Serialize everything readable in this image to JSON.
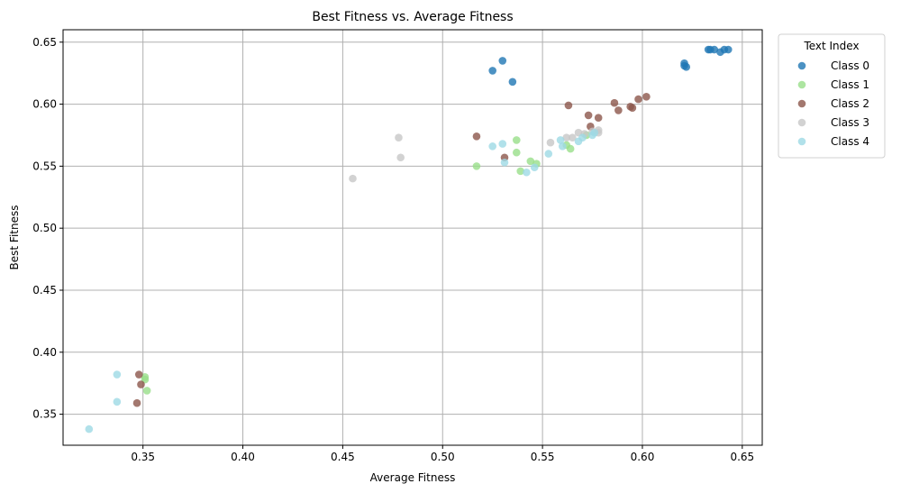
{
  "chart_data": {
    "type": "scatter",
    "title": "Best Fitness vs. Average Fitness",
    "xlabel": "Average Fitness",
    "ylabel": "Best Fitness",
    "xlim": [
      0.31,
      0.66
    ],
    "ylim": [
      0.325,
      0.66
    ],
    "xticks": [
      "0.35",
      "0.40",
      "0.45",
      "0.50",
      "0.55",
      "0.60",
      "0.65"
    ],
    "yticks": [
      "0.35",
      "0.40",
      "0.45",
      "0.50",
      "0.55",
      "0.60",
      "0.65"
    ],
    "grid": true,
    "legend": {
      "title": "Text Index",
      "placement": "outside-top-right"
    },
    "series": [
      {
        "name": "Class 0",
        "color": "#1f77b4",
        "points": [
          [
            0.53,
            0.635
          ],
          [
            0.525,
            0.627
          ],
          [
            0.535,
            0.618
          ],
          [
            0.621,
            0.633
          ],
          [
            0.621,
            0.631
          ],
          [
            0.622,
            0.63
          ],
          [
            0.633,
            0.644
          ],
          [
            0.634,
            0.644
          ],
          [
            0.636,
            0.644
          ],
          [
            0.639,
            0.642
          ],
          [
            0.641,
            0.644
          ],
          [
            0.643,
            0.644
          ]
        ]
      },
      {
        "name": "Class 1",
        "color": "#98df8a",
        "points": [
          [
            0.351,
            0.38
          ],
          [
            0.351,
            0.378
          ],
          [
            0.352,
            0.369
          ],
          [
            0.517,
            0.55
          ],
          [
            0.537,
            0.571
          ],
          [
            0.537,
            0.561
          ],
          [
            0.539,
            0.546
          ],
          [
            0.544,
            0.554
          ],
          [
            0.547,
            0.552
          ],
          [
            0.562,
            0.567
          ],
          [
            0.564,
            0.564
          ],
          [
            0.572,
            0.575
          ]
        ]
      },
      {
        "name": "Class 2",
        "color": "#8c564b",
        "points": [
          [
            0.348,
            0.382
          ],
          [
            0.349,
            0.374
          ],
          [
            0.347,
            0.359
          ],
          [
            0.517,
            0.574
          ],
          [
            0.531,
            0.557
          ],
          [
            0.563,
            0.599
          ],
          [
            0.573,
            0.591
          ],
          [
            0.574,
            0.582
          ],
          [
            0.578,
            0.589
          ],
          [
            0.586,
            0.601
          ],
          [
            0.588,
            0.595
          ],
          [
            0.594,
            0.598
          ],
          [
            0.595,
            0.597
          ],
          [
            0.598,
            0.604
          ],
          [
            0.602,
            0.606
          ]
        ]
      },
      {
        "name": "Class 3",
        "color": "#c7c7c7",
        "points": [
          [
            0.455,
            0.54
          ],
          [
            0.478,
            0.573
          ],
          [
            0.479,
            0.557
          ],
          [
            0.554,
            0.569
          ],
          [
            0.562,
            0.573
          ],
          [
            0.565,
            0.573
          ],
          [
            0.568,
            0.577
          ],
          [
            0.571,
            0.576
          ],
          [
            0.575,
            0.578
          ],
          [
            0.578,
            0.579
          ],
          [
            0.578,
            0.577
          ]
        ]
      },
      {
        "name": "Class 4",
        "color": "#9edae5",
        "points": [
          [
            0.323,
            0.338
          ],
          [
            0.337,
            0.382
          ],
          [
            0.337,
            0.36
          ],
          [
            0.525,
            0.566
          ],
          [
            0.53,
            0.568
          ],
          [
            0.531,
            0.553
          ],
          [
            0.542,
            0.545
          ],
          [
            0.546,
            0.549
          ],
          [
            0.553,
            0.56
          ],
          [
            0.559,
            0.571
          ],
          [
            0.56,
            0.566
          ],
          [
            0.568,
            0.57
          ],
          [
            0.57,
            0.573
          ],
          [
            0.575,
            0.575
          ],
          [
            0.576,
            0.577
          ]
        ]
      }
    ]
  }
}
